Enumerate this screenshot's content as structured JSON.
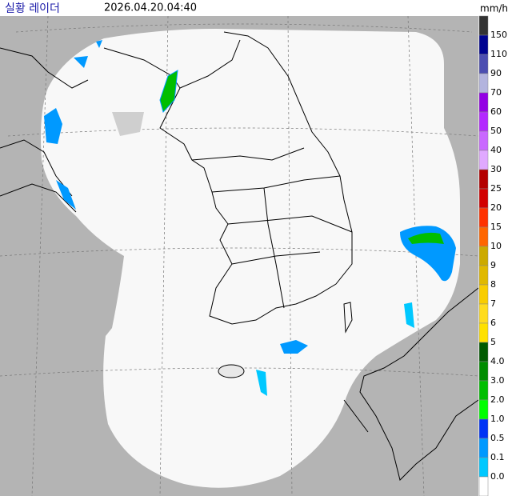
{
  "header": {
    "title": "실황 레이더",
    "timestamp": "2026.04.20.04:40",
    "unit": "mm/h"
  },
  "legend": {
    "labels": [
      "150",
      "110",
      "90",
      "70",
      "60",
      "50",
      "40",
      "30",
      "25",
      "20",
      "15",
      "10",
      "9",
      "8",
      "7",
      "6",
      "5",
      "4.0",
      "3.0",
      "2.0",
      "1.0",
      "0.5",
      "0.1",
      "0.0"
    ],
    "colors": [
      "#333333",
      "#000390",
      "#4c4eb1",
      "#b3b4de",
      "#9300e4",
      "#b329ff",
      "#c969ff",
      "#e0a9ff",
      "#b40000",
      "#d20000",
      "#ff3200",
      "#ff6600",
      "#ccaa00",
      "#e0b900",
      "#f9cd00",
      "#ffdc1f",
      "#ffe100",
      "#005a00",
      "#008c00",
      "#00be00",
      "#00ff00",
      "#0033f5",
      "#0099ff",
      "#00c8ff",
      "#ffffff"
    ]
  }
}
